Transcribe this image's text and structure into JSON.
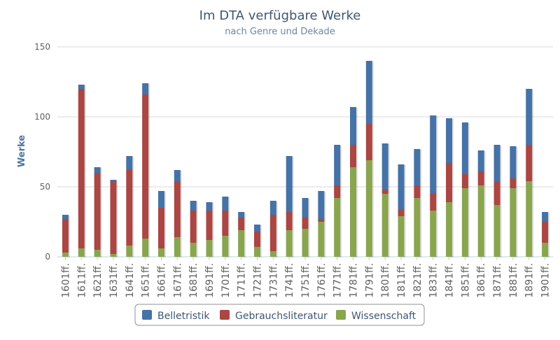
{
  "chart_data": {
    "type": "bar",
    "stacked": true,
    "title": "Im DTA verfügbare Werke",
    "subtitle": "nach Genre und Dekade",
    "ylabel": "Werke",
    "ylim": [
      0,
      150
    ],
    "yticks": [
      0,
      50,
      100,
      150
    ],
    "grid": true,
    "legend_position": "bottom-center",
    "categories": [
      "1601ff.",
      "1611ff.",
      "1621ff.",
      "1631ff.",
      "1641ff.",
      "1651ff.",
      "1661ff.",
      "1671ff.",
      "1681ff.",
      "1691ff.",
      "1701ff.",
      "1711ff.",
      "1721ff.",
      "1731ff.",
      "1741ff.",
      "1751ff.",
      "1761ff.",
      "1771ff.",
      "1781ff.",
      "1791ff.",
      "1801ff.",
      "1811ff.",
      "1821ff.",
      "1831ff.",
      "1841ff.",
      "1851ff.",
      "1861ff.",
      "1871ff.",
      "1881ff.",
      "1891ff.",
      "1901ff."
    ],
    "series": [
      {
        "name": "Wissenschaft",
        "color": "#89a54e",
        "values": [
          3,
          6,
          5,
          2,
          8,
          13,
          6,
          14,
          10,
          12,
          15,
          19,
          7,
          4,
          19,
          20,
          25,
          42,
          64,
          69,
          45,
          29,
          42,
          33,
          39,
          49,
          51,
          37,
          49,
          54,
          10
        ]
      },
      {
        "name": "Gebrauchsliteratur",
        "color": "#aa4643",
        "values": [
          24,
          114,
          55,
          52,
          54,
          103,
          29,
          40,
          23,
          21,
          18,
          9,
          11,
          26,
          13,
          8,
          2,
          9,
          16,
          26,
          3,
          5,
          9,
          12,
          28,
          10,
          10,
          17,
          7,
          26,
          15
        ]
      },
      {
        "name": "Belletristik",
        "color": "#4572a7",
        "values": [
          3,
          3,
          4,
          1,
          10,
          8,
          12,
          8,
          7,
          6,
          10,
          4,
          5,
          10,
          40,
          14,
          20,
          29,
          27,
          45,
          33,
          32,
          26,
          56,
          32,
          37,
          15,
          26,
          23,
          40,
          7
        ]
      }
    ],
    "legend": [
      "Belletristik",
      "Gebrauchsliteratur",
      "Wissenschaft"
    ]
  }
}
